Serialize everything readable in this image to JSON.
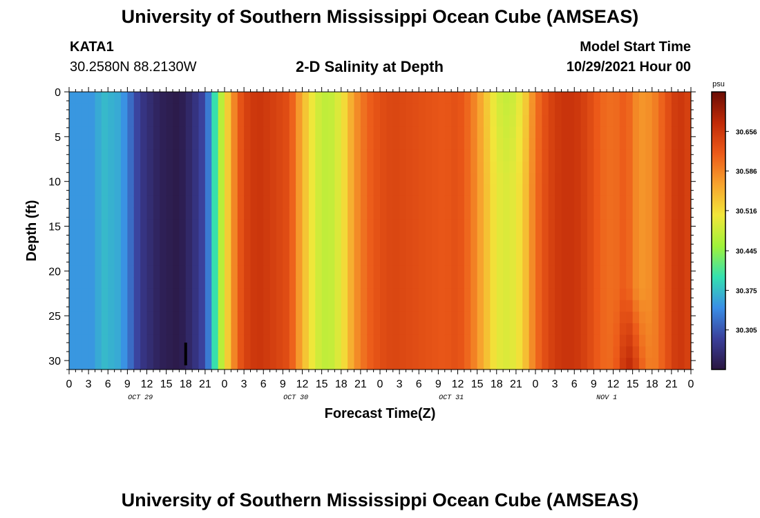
{
  "header": {
    "title": "University of Southern Mississippi Ocean Cube (AMSEAS)",
    "station_id": "KATA1",
    "coordinates": "30.2580N  88.2130W",
    "subtitle": "2-D Salinity at Depth",
    "model_start_label": "Model Start Time",
    "model_start_value": "10/29/2021 Hour 00"
  },
  "footer": {
    "title": "University of Southern Mississippi Ocean Cube (AMSEAS)"
  },
  "chart_data": {
    "type": "heatmap",
    "title": "2-D Salinity at Depth",
    "xlabel": "Forecast Time(Z)",
    "ylabel": "Depth (ft)",
    "x_tick_labels": [
      "0",
      "3",
      "6",
      "9",
      "12",
      "15",
      "18",
      "21",
      "0",
      "3",
      "6",
      "9",
      "12",
      "15",
      "18",
      "21",
      "0",
      "3",
      "6",
      "9",
      "12",
      "15",
      "18",
      "21",
      "0",
      "3",
      "6",
      "9",
      "12",
      "15",
      "18",
      "21",
      "0"
    ],
    "date_labels": [
      {
        "label": "OCT 29",
        "hour": 11
      },
      {
        "label": "OCT 30",
        "hour": 35
      },
      {
        "label": "OCT 31",
        "hour": 59
      },
      {
        "label": "NOV 1",
        "hour": 83
      }
    ],
    "xlim": [
      0,
      96
    ],
    "ylim": [
      0,
      31
    ],
    "y_ticks": [
      0,
      5,
      10,
      15,
      20,
      25,
      30
    ],
    "colorbar": {
      "unit": "psu",
      "range": [
        30.235,
        30.726
      ],
      "tick_values": [
        30.305,
        30.375,
        30.445,
        30.516,
        30.586,
        30.656
      ],
      "tick_labels": [
        "30.305",
        "30.375",
        "30.445",
        "30.516",
        "30.586",
        "30.656"
      ],
      "colors": [
        "#2a1640",
        "#3a3f9a",
        "#3a8ee6",
        "#34e0b0",
        "#9ff23a",
        "#f2e63a",
        "#f7a32e",
        "#ec5a19",
        "#c02a08",
        "#6a0d05"
      ]
    },
    "surface_salinity_profile": {
      "hours": [
        0,
        4,
        5,
        8,
        11,
        14,
        17,
        19,
        21,
        22,
        23,
        24,
        25,
        26,
        27,
        29,
        31,
        34,
        36,
        38,
        40,
        42,
        44,
        46,
        48,
        50,
        54,
        58,
        60,
        62,
        64,
        66,
        68,
        70,
        72,
        73,
        74,
        76,
        78,
        80,
        82,
        84,
        86,
        88,
        90,
        92,
        94,
        96
      ],
      "values": [
        30.35,
        30.35,
        30.375,
        30.36,
        30.28,
        30.25,
        30.24,
        30.265,
        30.3,
        30.36,
        30.44,
        30.5,
        30.56,
        30.61,
        30.64,
        30.66,
        30.65,
        30.63,
        30.55,
        30.49,
        30.47,
        30.5,
        30.57,
        30.61,
        30.63,
        30.64,
        30.63,
        30.62,
        30.63,
        30.6,
        30.55,
        30.5,
        30.49,
        30.52,
        30.6,
        30.62,
        30.64,
        30.66,
        30.66,
        30.64,
        30.61,
        30.6,
        30.62,
        30.57,
        30.58,
        30.62,
        30.66,
        30.64
      ]
    },
    "annotations": [
      {
        "type": "marker",
        "hour": 18,
        "depth_range": [
          28,
          31
        ],
        "color": "#000000"
      }
    ]
  }
}
